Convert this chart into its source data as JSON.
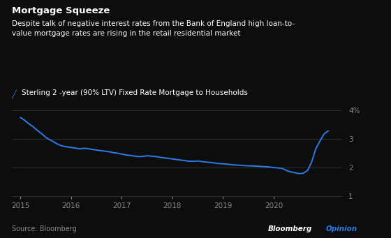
{
  "title": "Mortgage Squeeze",
  "subtitle": "Despite talk of negative interest rates from the Bank of England high loan-to-\nvalue mortgage rates are rising in the retail residential market",
  "legend_label": " Sterling 2 -year (90% LTV) Fixed Rate Mortgage to Households",
  "source": "Source: Bloomberg",
  "watermark1": "Bloomberg",
  "watermark2": "Opinion",
  "background_color": "#0d0d0d",
  "text_color": "#ffffff",
  "line_color": "#2b7ce8",
  "grid_color": "#3a3a3a",
  "tick_color": "#888888",
  "source_color": "#888888",
  "opinion_color": "#2b7ce8",
  "ylim": [
    1.0,
    4.35
  ],
  "yticks": [
    1,
    2,
    3,
    4
  ],
  "ytick_labels": [
    "1",
    "2",
    "3",
    "4%"
  ],
  "xlim_start": 2014.83,
  "xlim_end": 2021.35,
  "xticks": [
    2015,
    2016,
    2017,
    2018,
    2019,
    2020
  ],
  "data_x": [
    2015.0,
    2015.08,
    2015.17,
    2015.25,
    2015.33,
    2015.42,
    2015.5,
    2015.58,
    2015.67,
    2015.75,
    2015.83,
    2015.92,
    2016.0,
    2016.08,
    2016.17,
    2016.25,
    2016.33,
    2016.42,
    2016.5,
    2016.58,
    2016.67,
    2016.75,
    2016.83,
    2016.92,
    2017.0,
    2017.08,
    2017.17,
    2017.25,
    2017.33,
    2017.42,
    2017.5,
    2017.58,
    2017.67,
    2017.75,
    2017.83,
    2017.92,
    2018.0,
    2018.08,
    2018.17,
    2018.25,
    2018.33,
    2018.42,
    2018.5,
    2018.58,
    2018.67,
    2018.75,
    2018.83,
    2018.92,
    2019.0,
    2019.08,
    2019.17,
    2019.25,
    2019.33,
    2019.42,
    2019.5,
    2019.58,
    2019.67,
    2019.75,
    2019.83,
    2019.92,
    2020.0,
    2020.08,
    2020.17,
    2020.25,
    2020.33,
    2020.42,
    2020.5,
    2020.58,
    2020.67,
    2020.75,
    2020.83,
    2020.92,
    2021.0,
    2021.08
  ],
  "data_y": [
    3.74,
    3.65,
    3.52,
    3.42,
    3.3,
    3.18,
    3.05,
    2.97,
    2.88,
    2.8,
    2.75,
    2.72,
    2.7,
    2.68,
    2.65,
    2.67,
    2.66,
    2.63,
    2.61,
    2.59,
    2.57,
    2.55,
    2.52,
    2.5,
    2.47,
    2.44,
    2.42,
    2.4,
    2.38,
    2.39,
    2.41,
    2.4,
    2.38,
    2.36,
    2.34,
    2.32,
    2.3,
    2.28,
    2.26,
    2.24,
    2.22,
    2.22,
    2.23,
    2.21,
    2.19,
    2.18,
    2.16,
    2.14,
    2.13,
    2.12,
    2.1,
    2.09,
    2.08,
    2.07,
    2.06,
    2.06,
    2.05,
    2.04,
    2.03,
    2.02,
    2.0,
    1.99,
    1.97,
    1.9,
    1.85,
    1.82,
    1.79,
    1.8,
    1.9,
    2.2,
    2.65,
    2.95,
    3.18,
    3.28
  ]
}
